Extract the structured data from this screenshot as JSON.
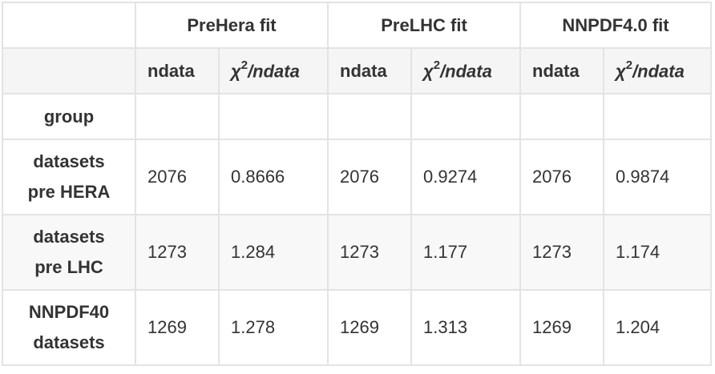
{
  "table": {
    "fit_headers": [
      "PreHera fit",
      "PreLHC fit",
      "NNPDF4.0 fit"
    ],
    "sub_headers": {
      "ndata": "ndata",
      "chi_prefix": "χ",
      "chi_sup": "2",
      "chi_suffix": "/ndata"
    },
    "group_label": "group",
    "rows": [
      {
        "label_line1": "datasets",
        "label_line2": "pre HERA",
        "values": [
          "2076",
          "0.8666",
          "2076",
          "0.9274",
          "2076",
          "0.9874"
        ]
      },
      {
        "label_line1": "datasets",
        "label_line2": "pre LHC",
        "values": [
          "1273",
          "1.284",
          "1273",
          "1.177",
          "1273",
          "1.174"
        ]
      },
      {
        "label_line1": "NNPDF40",
        "label_line2": "datasets",
        "values": [
          "1269",
          "1.278",
          "1269",
          "1.313",
          "1269",
          "1.204"
        ]
      }
    ]
  }
}
